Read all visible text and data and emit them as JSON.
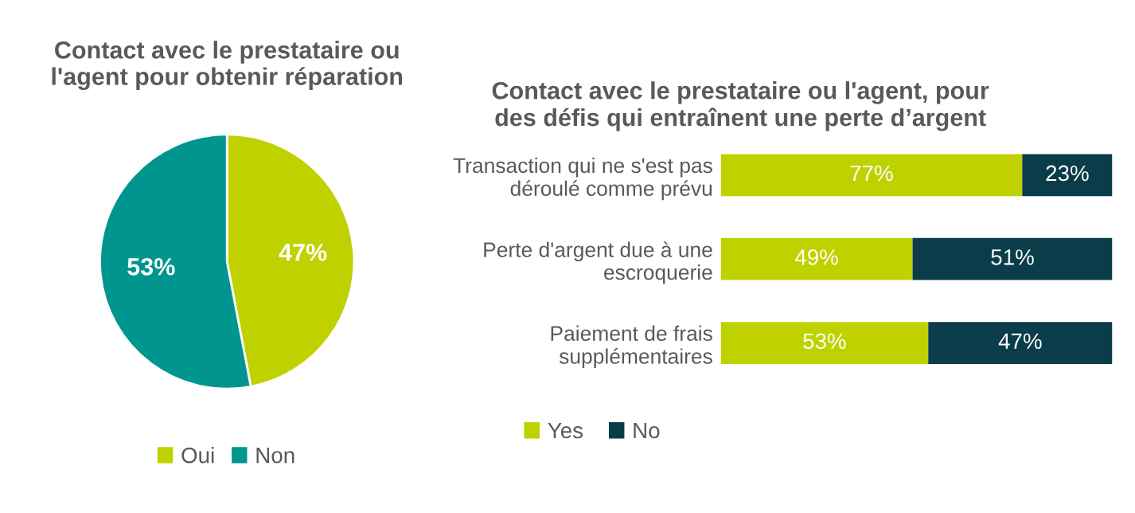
{
  "chart_data": [
    {
      "type": "pie",
      "title": "Contact avec le prestataire ou\nl'agent pour obtenir réparation",
      "categories": [
        "Oui",
        "Non"
      ],
      "values": [
        47,
        53
      ],
      "colors": [
        "#bfd200",
        "#00968f"
      ],
      "value_labels": [
        "47%",
        "53%"
      ],
      "legend": "bottom"
    },
    {
      "type": "bar",
      "orientation": "horizontal",
      "stacked": true,
      "title": "Contact avec le prestataire ou l'agent, pour\ndes défis qui entraînent une perte d’argent",
      "categories": [
        "Transaction qui ne s'est pas\ndéroulé comme prévu",
        "Perte d'argent due à une\nescroquerie",
        "Paiement de frais\nsupplémentaires"
      ],
      "series": [
        {
          "name": "Yes",
          "color": "#bfd200",
          "values": [
            77,
            49,
            53
          ],
          "value_labels": [
            "77%",
            "49%",
            "53%"
          ]
        },
        {
          "name": "No",
          "color": "#0b3c49",
          "values": [
            23,
            51,
            47
          ],
          "value_labels": [
            "23%",
            "51%",
            "47%"
          ]
        }
      ],
      "legend": "bottom left"
    }
  ]
}
